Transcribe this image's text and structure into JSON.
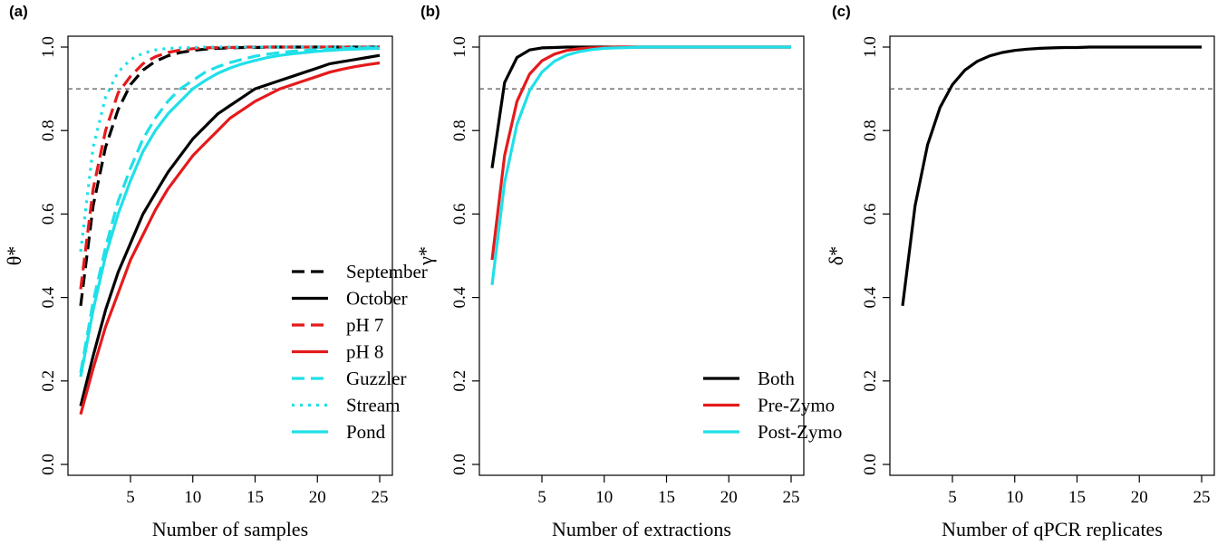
{
  "chart_data": [
    {
      "panel_label": "(a)",
      "type": "line",
      "xlabel": "Number of samples",
      "ylabel": "θ*",
      "xlim": [
        1,
        25
      ],
      "ylim": [
        0,
        1
      ],
      "xticks": [
        5,
        10,
        15,
        20,
        25
      ],
      "yticks": [
        0.0,
        0.2,
        0.4,
        0.6,
        0.8,
        1.0
      ],
      "reference_line": 0.9,
      "legend_position": "bottom-right",
      "x": [
        1,
        2,
        3,
        4,
        5,
        6,
        7,
        8,
        9,
        10,
        11,
        12,
        13,
        14,
        15,
        16,
        17,
        18,
        19,
        20,
        21,
        22,
        23,
        24,
        25
      ],
      "series": [
        {
          "name": "September",
          "color": "#000000",
          "dash": "dashed",
          "values": [
            0.38,
            0.62,
            0.76,
            0.85,
            0.91,
            0.945,
            0.966,
            0.979,
            0.987,
            0.992,
            0.995,
            0.997,
            0.998,
            0.999,
            0.999,
            1.0,
            1.0,
            1.0,
            1.0,
            1.0,
            1.0,
            1.0,
            1.0,
            1.0,
            1.0
          ]
        },
        {
          "name": "October",
          "color": "#000000",
          "dash": "solid",
          "values": [
            0.14,
            0.26,
            0.37,
            0.46,
            0.53,
            0.6,
            0.65,
            0.7,
            0.74,
            0.78,
            0.81,
            0.84,
            0.86,
            0.88,
            0.9,
            0.91,
            0.92,
            0.93,
            0.94,
            0.95,
            0.96,
            0.965,
            0.97,
            0.975,
            0.98
          ]
        },
        {
          "name": "pH 7",
          "color": "#e41a1c",
          "dash": "dashed",
          "values": [
            0.42,
            0.66,
            0.8,
            0.89,
            0.93,
            0.96,
            0.977,
            0.987,
            0.993,
            0.996,
            0.998,
            0.999,
            0.999,
            1.0,
            1.0,
            1.0,
            1.0,
            1.0,
            1.0,
            1.0,
            1.0,
            1.0,
            1.0,
            1.0,
            1.0
          ]
        },
        {
          "name": "pH 8",
          "color": "#e41a1c",
          "dash": "solid",
          "values": [
            0.12,
            0.23,
            0.33,
            0.41,
            0.49,
            0.55,
            0.61,
            0.66,
            0.7,
            0.74,
            0.77,
            0.8,
            0.83,
            0.85,
            0.87,
            0.885,
            0.9,
            0.91,
            0.92,
            0.93,
            0.94,
            0.947,
            0.953,
            0.958,
            0.962
          ]
        },
        {
          "name": "Guzzler",
          "color": "#1fe0e8",
          "dash": "dashed",
          "values": [
            0.22,
            0.39,
            0.52,
            0.63,
            0.71,
            0.78,
            0.83,
            0.87,
            0.9,
            0.92,
            0.94,
            0.953,
            0.963,
            0.971,
            0.978,
            0.983,
            0.987,
            0.99,
            0.992,
            0.994,
            0.995,
            0.996,
            0.997,
            0.998,
            0.998
          ]
        },
        {
          "name": "Stream",
          "color": "#1fe0e8",
          "dash": "dotted",
          "values": [
            0.51,
            0.76,
            0.88,
            0.94,
            0.97,
            0.985,
            0.993,
            0.997,
            0.998,
            0.999,
            1.0,
            1.0,
            1.0,
            1.0,
            1.0,
            1.0,
            1.0,
            1.0,
            1.0,
            1.0,
            1.0,
            1.0,
            1.0,
            1.0,
            1.0
          ]
        },
        {
          "name": "Pond",
          "color": "#1fe0e8",
          "dash": "solid",
          "values": [
            0.21,
            0.37,
            0.5,
            0.6,
            0.68,
            0.75,
            0.8,
            0.84,
            0.87,
            0.9,
            0.92,
            0.937,
            0.95,
            0.96,
            0.968,
            0.975,
            0.98,
            0.984,
            0.987,
            0.99,
            0.992,
            0.994,
            0.995,
            0.996,
            0.997
          ]
        }
      ]
    },
    {
      "panel_label": "(b)",
      "type": "line",
      "xlabel": "Number of extractions",
      "ylabel": "γ*",
      "xlim": [
        1,
        25
      ],
      "ylim": [
        0,
        1
      ],
      "xticks": [
        5,
        10,
        15,
        20,
        25
      ],
      "yticks": [
        0.0,
        0.2,
        0.4,
        0.6,
        0.8,
        1.0
      ],
      "reference_line": 0.9,
      "legend_position": "bottom-right",
      "x": [
        1,
        2,
        3,
        4,
        5,
        6,
        7,
        8,
        9,
        10,
        11,
        12,
        13,
        14,
        15,
        16,
        17,
        18,
        19,
        20,
        21,
        22,
        23,
        24,
        25
      ],
      "series": [
        {
          "name": "Both",
          "color": "#000000",
          "dash": "solid",
          "values": [
            0.71,
            0.915,
            0.975,
            0.993,
            0.998,
            0.999,
            1.0,
            1.0,
            1.0,
            1.0,
            1.0,
            1.0,
            1.0,
            1.0,
            1.0,
            1.0,
            1.0,
            1.0,
            1.0,
            1.0,
            1.0,
            1.0,
            1.0,
            1.0,
            1.0
          ]
        },
        {
          "name": "Pre-Zymo",
          "color": "#e41a1c",
          "dash": "solid",
          "values": [
            0.49,
            0.74,
            0.87,
            0.935,
            0.967,
            0.983,
            0.992,
            0.996,
            0.998,
            0.999,
            1.0,
            1.0,
            1.0,
            1.0,
            1.0,
            1.0,
            1.0,
            1.0,
            1.0,
            1.0,
            1.0,
            1.0,
            1.0,
            1.0,
            1.0
          ]
        },
        {
          "name": "Post-Zymo",
          "color": "#1fe0e8",
          "dash": "solid",
          "values": [
            0.43,
            0.675,
            0.815,
            0.895,
            0.94,
            0.966,
            0.981,
            0.989,
            0.994,
            0.997,
            0.998,
            0.999,
            1.0,
            1.0,
            1.0,
            1.0,
            1.0,
            1.0,
            1.0,
            1.0,
            1.0,
            1.0,
            1.0,
            1.0,
            1.0
          ]
        }
      ]
    },
    {
      "panel_label": "(c)",
      "type": "line",
      "xlabel": "Number of qPCR replicates",
      "ylabel": "δ*",
      "xlim": [
        1,
        25
      ],
      "ylim": [
        0,
        1
      ],
      "xticks": [
        5,
        10,
        15,
        20,
        25
      ],
      "yticks": [
        0.0,
        0.2,
        0.4,
        0.6,
        0.8,
        1.0
      ],
      "reference_line": 0.9,
      "x": [
        1,
        2,
        3,
        4,
        5,
        6,
        7,
        8,
        9,
        10,
        11,
        12,
        13,
        14,
        15,
        16,
        17,
        18,
        19,
        20,
        21,
        22,
        23,
        24,
        25
      ],
      "series": [
        {
          "name": "",
          "color": "#000000",
          "dash": "solid",
          "values": [
            0.38,
            0.62,
            0.765,
            0.855,
            0.91,
            0.945,
            0.966,
            0.979,
            0.987,
            0.992,
            0.995,
            0.997,
            0.998,
            0.999,
            0.999,
            1.0,
            1.0,
            1.0,
            1.0,
            1.0,
            1.0,
            1.0,
            1.0,
            1.0,
            1.0
          ]
        }
      ]
    }
  ]
}
